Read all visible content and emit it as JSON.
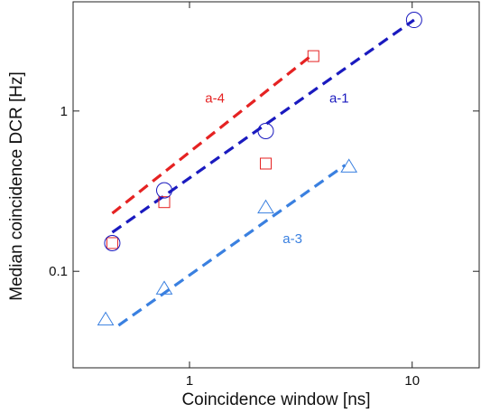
{
  "chart_data": {
    "type": "scatter",
    "title": "",
    "xlabel": "Coincidence window [ns]",
    "ylabel": "Median coincidence DCR [Hz]",
    "xscale": "log",
    "yscale": "log",
    "xlim": [
      0.3,
      20
    ],
    "ylim": [
      0.025,
      4.8
    ],
    "x_ticks": [
      {
        "value": 1,
        "label": "1"
      },
      {
        "value": 10,
        "label": "10"
      }
    ],
    "y_ticks": [
      {
        "value": 0.1,
        "label": "0.1"
      },
      {
        "value": 1,
        "label": "1"
      }
    ],
    "grid": false,
    "series": [
      {
        "name": "a-4",
        "color": "#e52222",
        "marker": "square",
        "points": [
          {
            "x": 0.45,
            "y": 0.15
          },
          {
            "x": 0.77,
            "y": 0.27
          },
          {
            "x": 2.2,
            "y": 0.47
          },
          {
            "x": 3.6,
            "y": 2.2
          }
        ],
        "fit": {
          "x": [
            0.45,
            3.5
          ],
          "y": [
            0.23,
            2.2
          ]
        }
      },
      {
        "name": "a-1",
        "color": "#1a1abf",
        "marker": "circle",
        "points": [
          {
            "x": 0.45,
            "y": 0.15
          },
          {
            "x": 0.77,
            "y": 0.32
          },
          {
            "x": 2.2,
            "y": 0.75
          },
          {
            "x": 10.2,
            "y": 3.7
          }
        ],
        "fit": {
          "x": [
            0.45,
            10.2
          ],
          "y": [
            0.175,
            3.7
          ]
        }
      },
      {
        "name": "a-3",
        "color": "#3a80e0",
        "marker": "triangle",
        "points": [
          {
            "x": 0.42,
            "y": 0.05
          },
          {
            "x": 0.77,
            "y": 0.078
          },
          {
            "x": 2.2,
            "y": 0.25
          },
          {
            "x": 5.2,
            "y": 0.45
          }
        ],
        "fit": {
          "x": [
            0.48,
            5.0
          ],
          "y": [
            0.046,
            0.46
          ]
        }
      }
    ],
    "annotations": [
      {
        "text": "a-4",
        "x": 1.3,
        "y": 1.13,
        "color": "#e52222"
      },
      {
        "text": "a-1",
        "x": 4.7,
        "y": 1.13,
        "color": "#1a1abf"
      },
      {
        "text": "a-3",
        "x": 2.9,
        "y": 0.15,
        "color": "#3a80e0"
      }
    ]
  }
}
